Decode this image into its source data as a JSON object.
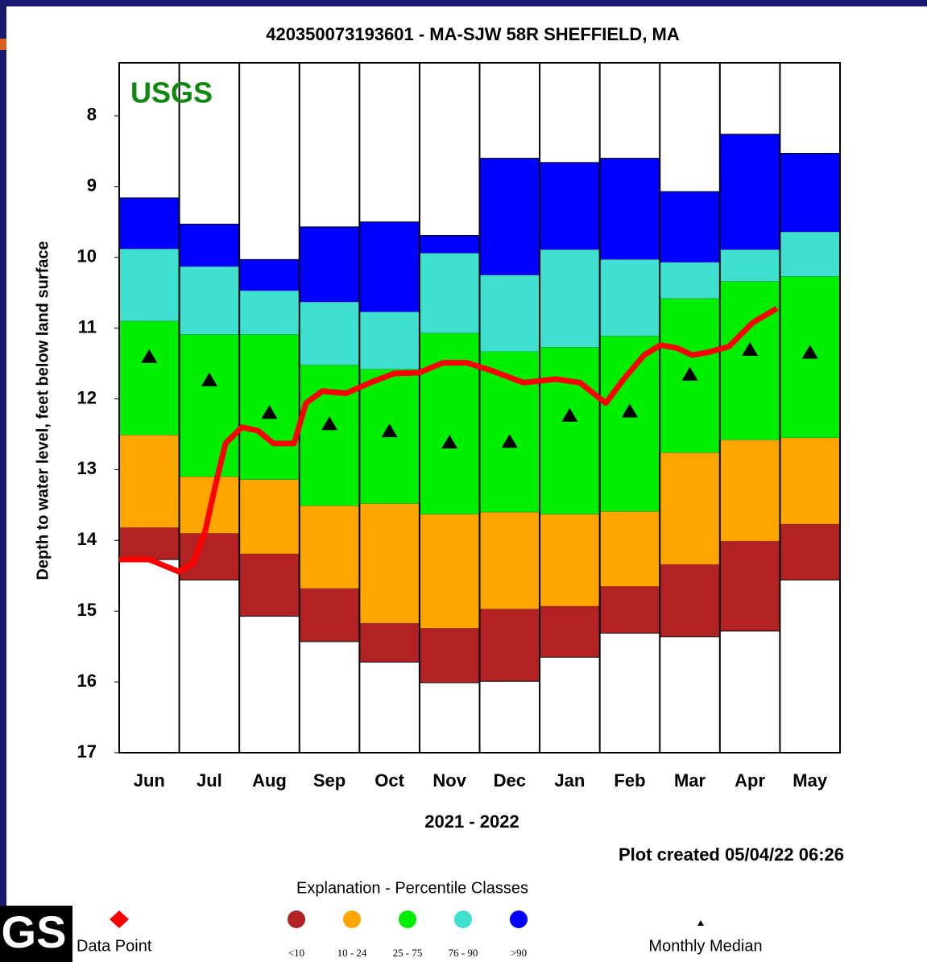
{
  "chart_data": {
    "type": "percentile",
    "title": "420350073193601 - MA-SJW 58R SHEFFIELD, MA",
    "watermark": "USGS",
    "y_label": "Depth to water level, feet below land surface",
    "x_label": "2021 - 2022",
    "note": "Plot created 05/04/22 06:26",
    "legend_title": "Explanation - Percentile Classes",
    "categories": [
      "Jun",
      "Jul",
      "Aug",
      "Sep",
      "Oct",
      "Nov",
      "Dec",
      "Jan",
      "Feb",
      "Mar",
      "Apr",
      "May"
    ],
    "ylim": [
      17,
      7.25
    ],
    "yticks": [
      8,
      9,
      10,
      11,
      12,
      13,
      14,
      15,
      16,
      17
    ],
    "xlim": [
      0,
      12
    ],
    "boundaries": [
      [
        9.16,
        9.53,
        10.03,
        9.57,
        9.5,
        9.69,
        8.6,
        8.66,
        8.6,
        9.07,
        8.26,
        8.53
      ],
      [
        9.88,
        10.13,
        10.47,
        10.63,
        10.77,
        9.94,
        10.25,
        9.89,
        10.03,
        10.07,
        9.89,
        9.64
      ],
      [
        10.9,
        11.09,
        11.09,
        11.52,
        11.58,
        11.07,
        11.33,
        11.27,
        11.11,
        10.58,
        10.34,
        10.27
      ],
      [
        12.51,
        13.1,
        13.14,
        13.51,
        13.48,
        13.63,
        13.6,
        13.63,
        13.59,
        12.76,
        12.58,
        12.55
      ],
      [
        13.82,
        13.9,
        14.19,
        14.68,
        15.17,
        15.24,
        14.97,
        14.93,
        14.65,
        14.34,
        14.01,
        13.77
      ],
      [
        14.27,
        14.56,
        15.07,
        15.43,
        15.72,
        16.01,
        15.99,
        15.65,
        15.31,
        15.36,
        15.28,
        14.56
      ]
    ],
    "classes": [
      {
        "name": "<10",
        "color": "#b22222"
      },
      {
        "name": "10 - 24",
        "color": "#ffa500"
      },
      {
        "name": "25 - 75",
        "color": "#00ee00"
      },
      {
        "name": "76 - 90",
        "color": "#40e0d0"
      },
      {
        "name": ">90",
        "color": "#0000ff"
      }
    ],
    "series": [
      {
        "name": "Data Point",
        "color": "#ff0000",
        "x": [
          0,
          0.5,
          0.99,
          1.23,
          1.43,
          1.61,
          1.77,
          2.04,
          2.31,
          2.57,
          2.91,
          3.11,
          3.38,
          3.78,
          4.18,
          4.58,
          4.99,
          5.39,
          5.79,
          6.2,
          6.73,
          7.27,
          7.67,
          8.1,
          8.4,
          8.74,
          9.01,
          9.28,
          9.54,
          9.81,
          10.15,
          10.55,
          10.95
        ],
        "values": [
          14.27,
          14.27,
          14.44,
          14.33,
          13.875,
          13.19,
          12.63,
          12.4,
          12.45,
          12.63,
          12.63,
          12.06,
          11.89,
          11.92,
          11.77,
          11.64,
          11.63,
          11.49,
          11.49,
          11.6,
          11.77,
          11.72,
          11.77,
          12.06,
          11.72,
          11.38,
          11.24,
          11.28,
          11.38,
          11.34,
          11.26,
          10.92,
          10.72
        ]
      },
      {
        "name": "Monthly Median",
        "color": "#000000",
        "values": [
          11.4,
          11.73,
          12.19,
          12.35,
          12.45,
          12.61,
          12.6,
          12.23,
          12.17,
          11.65,
          11.3,
          11.34
        ]
      }
    ]
  },
  "page": {
    "logo": "GS"
  }
}
